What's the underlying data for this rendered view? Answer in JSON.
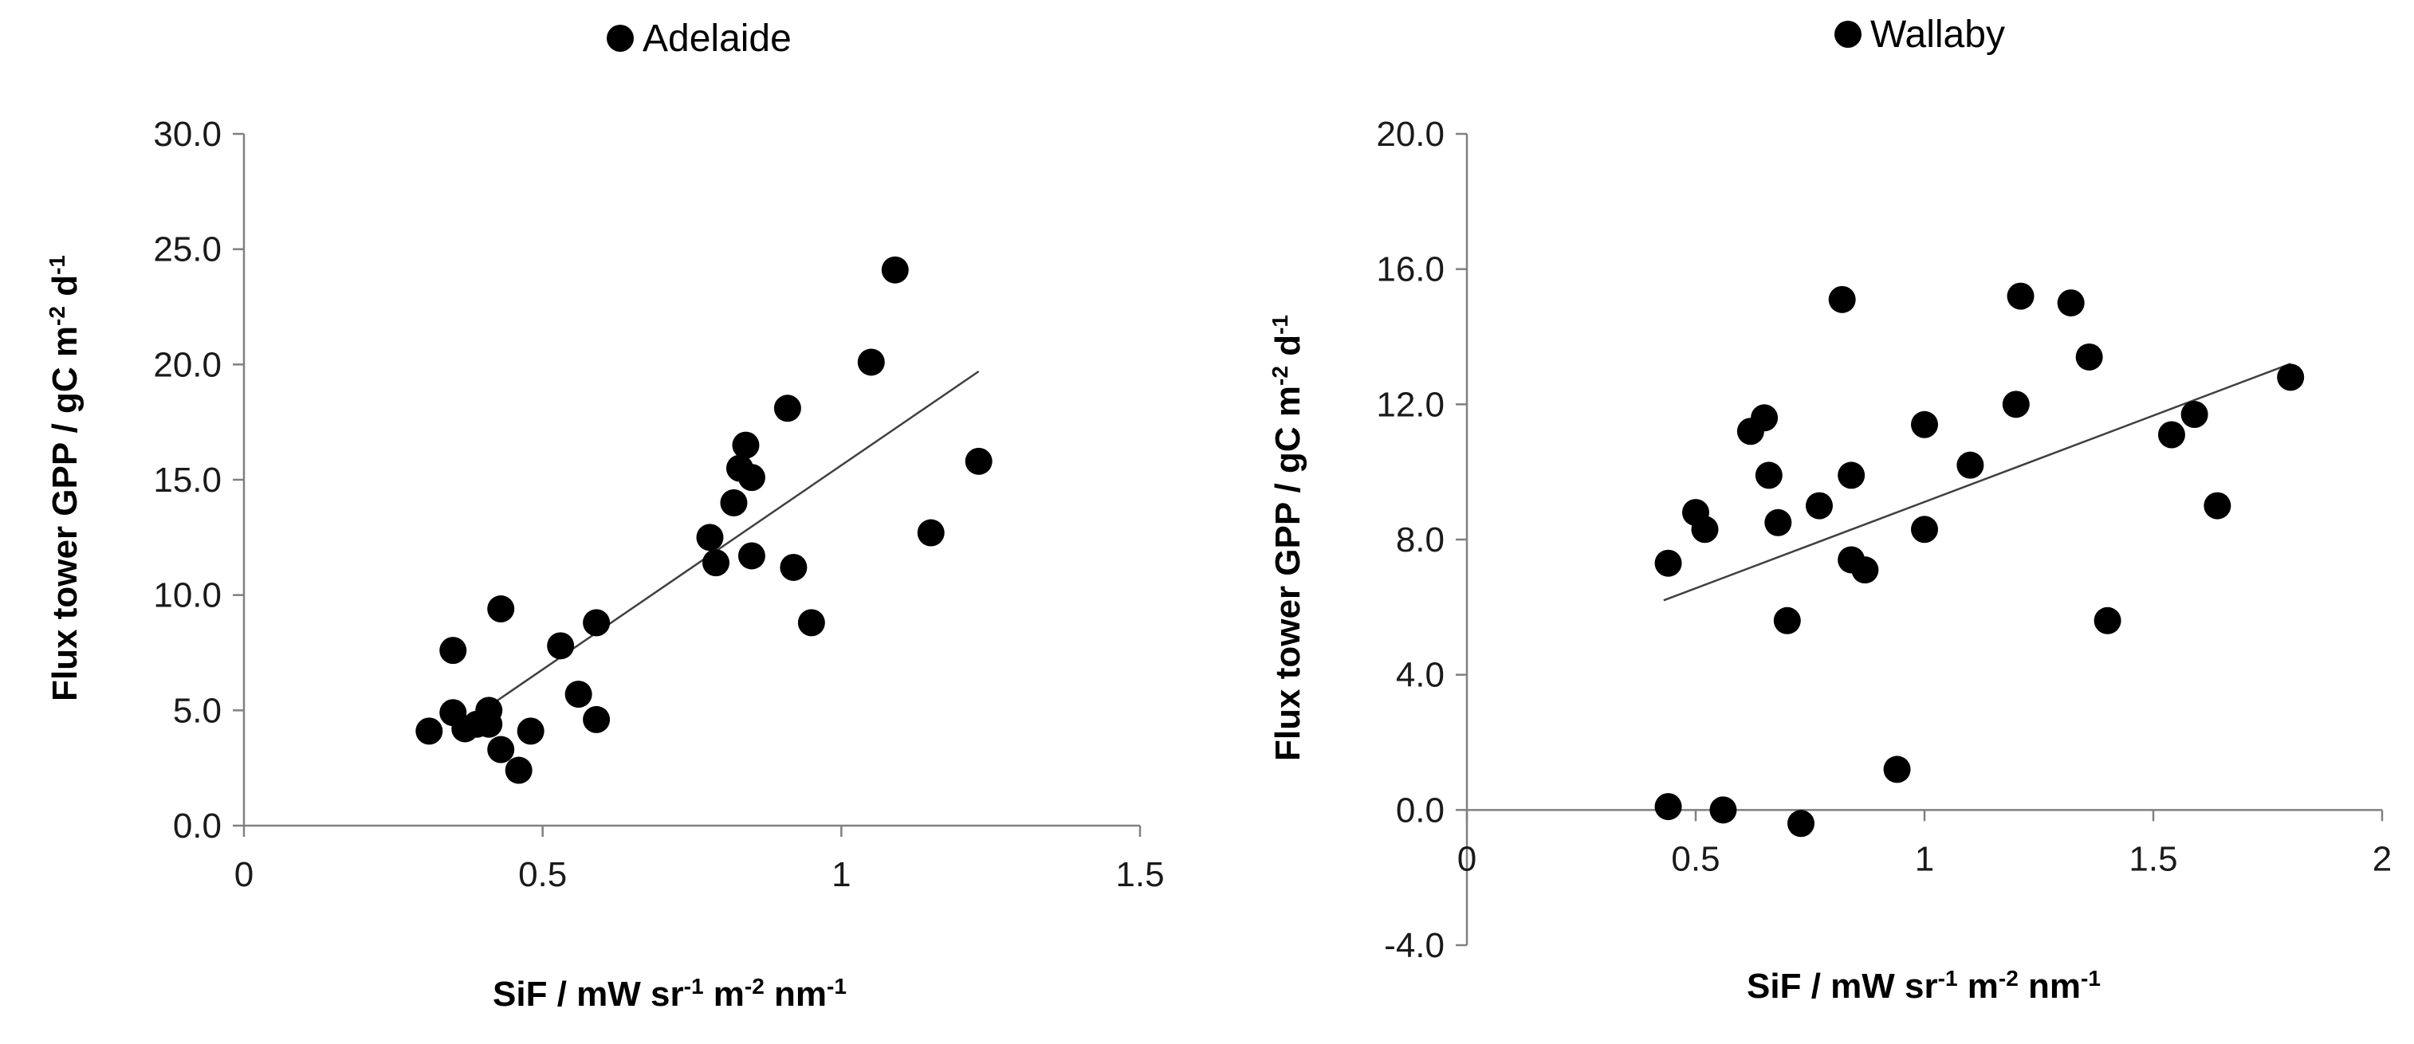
{
  "chart_data": [
    {
      "type": "scatter",
      "title": "",
      "legend": {
        "label": "Adelaide",
        "marker": "filled-circle",
        "placement": "top-center"
      },
      "xlabel": "SiF / mW sr-1 m-2 nm-1",
      "xlabel_parts": [
        "SiF / mW sr",
        "-1",
        " m",
        "-2",
        " nm",
        "-1"
      ],
      "ylabel": "Flux tower GPP / gC m-2 d-1",
      "ylabel_parts": [
        "Flux tower GPP / gC m",
        "-2",
        " d",
        "-1"
      ],
      "xlim": [
        0,
        1.5
      ],
      "ylim": [
        0,
        30
      ],
      "xticks": [
        0,
        0.5,
        1,
        1.5
      ],
      "xtick_labels": [
        "0",
        "0.5",
        "1",
        "1.5"
      ],
      "yticks": [
        0,
        5,
        10,
        15,
        20,
        25,
        30
      ],
      "ytick_labels": [
        "0.0",
        "5.0",
        "10.0",
        "15.0",
        "20.0",
        "25.0",
        "30.0"
      ],
      "marker_color": "#000000",
      "trendline": {
        "x": [
          0.4,
          1.23
        ],
        "y": [
          5.0,
          19.7
        ],
        "color": "#404040"
      },
      "points": [
        {
          "x": 0.31,
          "y": 4.1
        },
        {
          "x": 0.35,
          "y": 7.6
        },
        {
          "x": 0.35,
          "y": 4.9
        },
        {
          "x": 0.37,
          "y": 4.2
        },
        {
          "x": 0.39,
          "y": 4.4
        },
        {
          "x": 0.41,
          "y": 5.0
        },
        {
          "x": 0.41,
          "y": 4.4
        },
        {
          "x": 0.43,
          "y": 9.4
        },
        {
          "x": 0.43,
          "y": 3.3
        },
        {
          "x": 0.46,
          "y": 2.4
        },
        {
          "x": 0.48,
          "y": 4.1
        },
        {
          "x": 0.53,
          "y": 7.8
        },
        {
          "x": 0.56,
          "y": 5.7
        },
        {
          "x": 0.59,
          "y": 8.8
        },
        {
          "x": 0.59,
          "y": 4.6
        },
        {
          "x": 0.78,
          "y": 12.5
        },
        {
          "x": 0.79,
          "y": 11.4
        },
        {
          "x": 0.82,
          "y": 14.0
        },
        {
          "x": 0.83,
          "y": 15.5
        },
        {
          "x": 0.84,
          "y": 16.5
        },
        {
          "x": 0.85,
          "y": 15.1
        },
        {
          "x": 0.85,
          "y": 11.7
        },
        {
          "x": 0.91,
          "y": 18.1
        },
        {
          "x": 0.92,
          "y": 11.2
        },
        {
          "x": 0.95,
          "y": 8.8
        },
        {
          "x": 1.05,
          "y": 20.1
        },
        {
          "x": 1.09,
          "y": 24.1
        },
        {
          "x": 1.15,
          "y": 12.7
        },
        {
          "x": 1.23,
          "y": 15.8
        }
      ]
    },
    {
      "type": "scatter",
      "title": "",
      "legend": {
        "label": "Wallaby",
        "marker": "filled-circle",
        "placement": "top-center"
      },
      "xlabel": "SiF / mW sr-1 m-2 nm-1",
      "xlabel_parts": [
        "SiF / mW sr",
        "-1",
        " m",
        "-2",
        " nm",
        "-1"
      ],
      "ylabel": "Flux tower GPP / gC m-2 d-1",
      "ylabel_parts": [
        "Flux tower GPP / gC m",
        "-2",
        " d",
        "-1"
      ],
      "xlim": [
        0,
        2
      ],
      "ylim": [
        -4,
        20
      ],
      "xticks": [
        0,
        0.5,
        1,
        1.5,
        2
      ],
      "xtick_labels": [
        "0",
        "0.5",
        "1",
        "1.5",
        "2"
      ],
      "yticks": [
        -4,
        0,
        4,
        8,
        12,
        16,
        20
      ],
      "ytick_labels": [
        "-4.0",
        "0.0",
        "4.0",
        "8.0",
        "12.0",
        "16.0",
        "20.0"
      ],
      "x_axis_at_y": 0,
      "marker_color": "#000000",
      "trendline": {
        "x": [
          0.43,
          1.8
        ],
        "y": [
          6.2,
          13.2
        ],
        "color": "#404040"
      },
      "points": [
        {
          "x": 0.44,
          "y": 7.3
        },
        {
          "x": 0.44,
          "y": 0.1
        },
        {
          "x": 0.5,
          "y": 8.8
        },
        {
          "x": 0.52,
          "y": 8.3
        },
        {
          "x": 0.56,
          "y": 0.0
        },
        {
          "x": 0.62,
          "y": 11.2
        },
        {
          "x": 0.65,
          "y": 11.6
        },
        {
          "x": 0.66,
          "y": 9.9
        },
        {
          "x": 0.68,
          "y": 8.5
        },
        {
          "x": 0.7,
          "y": 5.6
        },
        {
          "x": 0.73,
          "y": -0.4
        },
        {
          "x": 0.77,
          "y": 9.0
        },
        {
          "x": 0.82,
          "y": 15.1
        },
        {
          "x": 0.84,
          "y": 9.9
        },
        {
          "x": 0.84,
          "y": 7.4
        },
        {
          "x": 0.87,
          "y": 7.1
        },
        {
          "x": 0.94,
          "y": 1.2
        },
        {
          "x": 1.0,
          "y": 11.4
        },
        {
          "x": 1.0,
          "y": 8.3
        },
        {
          "x": 1.1,
          "y": 10.2
        },
        {
          "x": 1.2,
          "y": 12.0
        },
        {
          "x": 1.21,
          "y": 15.2
        },
        {
          "x": 1.32,
          "y": 15.0
        },
        {
          "x": 1.36,
          "y": 13.4
        },
        {
          "x": 1.4,
          "y": 5.6
        },
        {
          "x": 1.54,
          "y": 11.1
        },
        {
          "x": 1.59,
          "y": 11.7
        },
        {
          "x": 1.64,
          "y": 9.0
        },
        {
          "x": 1.8,
          "y": 12.8
        }
      ]
    }
  ]
}
